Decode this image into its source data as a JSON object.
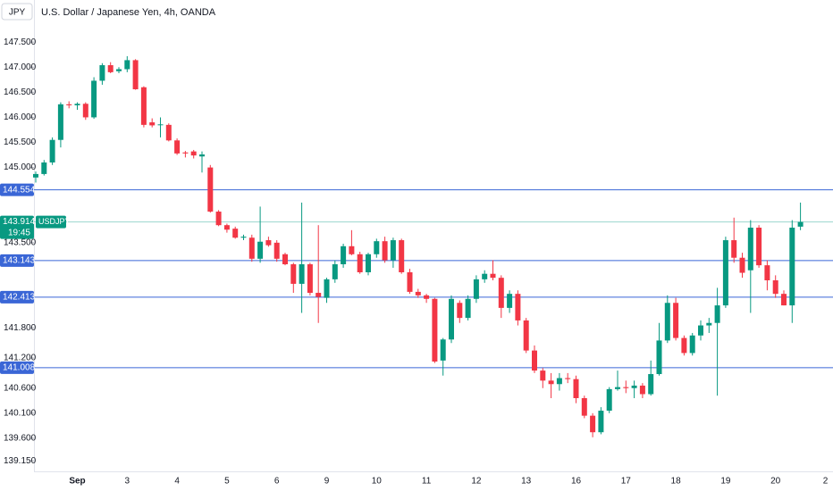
{
  "chart_data": {
    "type": "candlestick",
    "title": "U.S. Dollar / Japanese Yen, 4h, OANDA",
    "currency": "JPY",
    "up_color": "#089981",
    "down_color": "#f23645",
    "line_color": "#3a66d6",
    "categories": [
      null,
      null,
      null,
      null,
      null,
      "Sep",
      null,
      null,
      null,
      null,
      null,
      "3",
      null,
      null,
      null,
      null,
      null,
      "4",
      null,
      null,
      null,
      null,
      null,
      "5",
      null,
      null,
      null,
      null,
      null,
      "6",
      null,
      null,
      null,
      null,
      null,
      "9",
      null,
      null,
      null,
      null,
      null,
      "10",
      null,
      null,
      null,
      null,
      null,
      "11",
      null,
      null,
      null,
      null,
      null,
      "12",
      null,
      null,
      null,
      null,
      null,
      "13",
      null,
      null,
      null,
      null,
      null,
      "16",
      null,
      null,
      null,
      null,
      null,
      "17",
      null,
      null,
      null,
      null,
      null,
      "18",
      null,
      null,
      null,
      null,
      null,
      "19",
      null,
      null,
      null,
      null,
      null,
      "20",
      null,
      null,
      null,
      null,
      null,
      "2"
    ],
    "open": [
      144.8,
      144.87,
      145.1,
      145.55,
      146.26,
      146.24,
      146.27,
      146.0,
      146.73,
      147.04,
      146.92,
      146.96,
      147.14,
      146.6,
      145.9,
      145.86,
      145.85,
      145.54,
      145.3,
      145.32,
      145.22,
      145.0,
      144.12,
      143.85,
      143.78,
      143.6,
      143.6,
      143.18,
      143.55,
      143.5,
      143.27,
      143.07,
      142.68,
      143.07,
      142.5,
      142.4,
      142.77,
      143.07,
      143.43,
      143.27,
      142.91,
      143.27,
      143.53,
      143.15,
      143.55,
      142.91,
      142.52,
      142.45,
      142.38,
      141.15,
      141.57,
      142.3,
      142.0,
      142.38,
      142.77,
      142.88,
      142.8,
      142.2,
      142.48,
      141.95,
      141.35,
      140.95,
      140.75,
      140.68,
      140.8,
      140.78,
      140.4,
      140.05,
      139.72,
      140.15,
      140.58,
      140.62,
      140.6,
      140.65,
      140.48,
      140.88,
      141.55,
      142.3,
      141.6,
      141.3,
      141.65,
      141.85,
      141.9,
      142.25,
      143.55,
      143.2,
      142.95,
      143.8,
      143.05,
      142.75,
      142.48,
      142.25,
      143.82,
      null,
      null,
      null
    ],
    "high": [
      144.92,
      145.15,
      145.6,
      146.3,
      146.32,
      146.3,
      146.3,
      146.8,
      147.08,
      147.1,
      147.0,
      147.22,
      147.16,
      146.62,
      145.98,
      146.0,
      145.88,
      145.58,
      145.33,
      145.35,
      145.32,
      145.05,
      144.15,
      143.88,
      143.82,
      143.66,
      143.66,
      144.22,
      143.62,
      143.55,
      143.3,
      143.1,
      144.3,
      143.1,
      143.85,
      142.8,
      143.15,
      143.48,
      143.75,
      143.32,
      143.3,
      143.58,
      143.62,
      143.6,
      143.58,
      142.98,
      142.58,
      142.48,
      142.4,
      141.6,
      142.45,
      142.35,
      142.45,
      142.85,
      142.95,
      143.15,
      142.85,
      142.55,
      142.55,
      142.0,
      141.45,
      141.0,
      140.9,
      140.9,
      140.9,
      140.85,
      140.45,
      140.1,
      140.22,
      140.62,
      140.95,
      140.75,
      140.75,
      140.7,
      141.15,
      141.9,
      142.45,
      142.4,
      141.65,
      141.7,
      141.95,
      142.0,
      142.6,
      143.62,
      144.0,
      143.3,
      143.95,
      143.85,
      143.15,
      142.85,
      142.55,
      143.95,
      144.3,
      null,
      null,
      null
    ],
    "low": [
      144.7,
      144.84,
      145.05,
      145.4,
      146.18,
      146.15,
      145.95,
      145.97,
      146.65,
      146.88,
      146.88,
      146.9,
      146.55,
      145.8,
      145.8,
      145.6,
      145.52,
      145.25,
      145.2,
      145.18,
      144.9,
      144.1,
      143.83,
      143.7,
      143.58,
      143.55,
      143.12,
      143.1,
      143.42,
      143.12,
      143.05,
      142.5,
      142.1,
      142.45,
      141.9,
      142.3,
      142.7,
      143.0,
      143.25,
      142.88,
      142.85,
      143.2,
      143.1,
      143.0,
      142.88,
      142.48,
      142.4,
      142.3,
      141.1,
      140.85,
      141.5,
      141.9,
      141.95,
      142.3,
      142.7,
      142.75,
      142.0,
      142.1,
      141.85,
      141.3,
      140.9,
      140.6,
      140.4,
      140.55,
      140.7,
      140.3,
      140.0,
      139.62,
      139.68,
      140.1,
      140.55,
      140.5,
      140.4,
      140.4,
      140.45,
      140.85,
      141.5,
      141.55,
      141.25,
      141.25,
      141.55,
      141.7,
      140.45,
      142.2,
      143.1,
      142.8,
      142.1,
      143.0,
      142.55,
      142.4,
      142.25,
      141.9,
      143.75,
      null,
      null,
      null
    ],
    "close": [
      144.87,
      145.1,
      145.55,
      146.26,
      146.24,
      146.27,
      146.0,
      146.73,
      147.04,
      146.9,
      146.96,
      147.14,
      146.56,
      145.85,
      145.84,
      145.86,
      145.54,
      145.28,
      145.28,
      145.24,
      145.26,
      144.12,
      143.85,
      143.76,
      143.6,
      143.62,
      143.18,
      143.52,
      143.45,
      143.18,
      143.07,
      142.68,
      143.07,
      142.5,
      142.42,
      142.77,
      143.07,
      143.43,
      143.27,
      142.91,
      143.27,
      143.53,
      143.15,
      143.55,
      142.91,
      142.52,
      142.45,
      142.38,
      141.13,
      141.57,
      142.38,
      142.0,
      142.38,
      142.77,
      142.88,
      142.8,
      142.2,
      142.48,
      141.95,
      141.35,
      140.95,
      140.75,
      140.68,
      140.8,
      140.78,
      140.4,
      140.05,
      139.72,
      140.15,
      140.58,
      140.62,
      140.6,
      140.65,
      140.48,
      140.88,
      141.55,
      142.3,
      141.6,
      141.3,
      141.65,
      141.85,
      141.9,
      142.25,
      143.55,
      143.2,
      142.9,
      143.8,
      143.05,
      142.75,
      142.48,
      142.25,
      143.8,
      143.914,
      null,
      null,
      null
    ],
    "ylim": [
      138.94,
      148.34
    ],
    "yticks": [
      {
        "value": 147.5,
        "label": "147.500"
      },
      {
        "value": 147,
        "label": "147.000"
      },
      {
        "value": 146.5,
        "label": "146.500"
      },
      {
        "value": 146,
        "label": "146.000"
      },
      {
        "value": 145.5,
        "label": "145.500"
      },
      {
        "value": 145,
        "label": "145.000"
      },
      {
        "value": 143.5,
        "label": "143.500"
      },
      {
        "value": 141.8,
        "label": "141.800"
      },
      {
        "value": 141.2,
        "label": "141.200"
      },
      {
        "value": 140.6,
        "label": "140.600"
      },
      {
        "value": 140.1,
        "label": "140.100"
      },
      {
        "value": 139.6,
        "label": "139.600"
      },
      {
        "value": 139.15,
        "label": "139.150"
      }
    ],
    "price_lines": [
      144.554,
      143.143,
      142.413,
      141.008
    ],
    "last_price": {
      "value": 143.914,
      "symbol": "USDJPY",
      "countdown": "19:45",
      "color": "#089981"
    }
  }
}
